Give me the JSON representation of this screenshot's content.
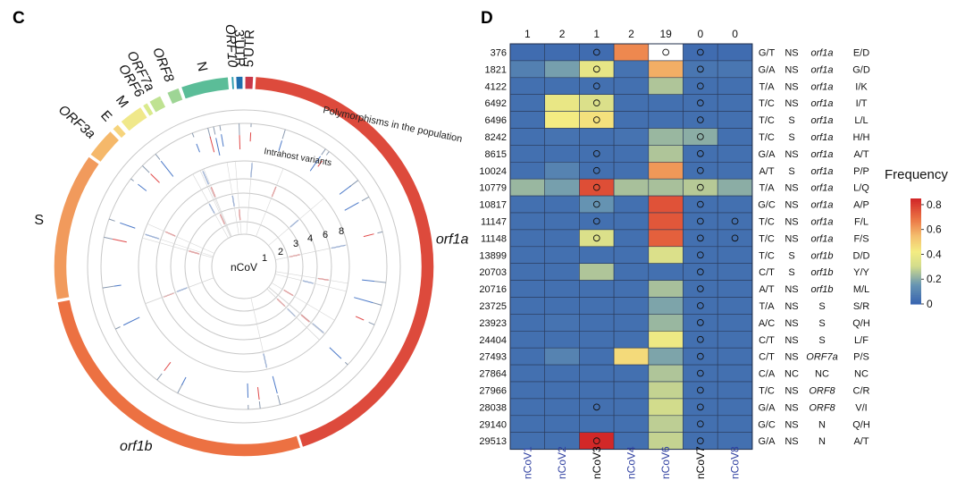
{
  "chart_data": [
    {
      "type": "circos",
      "panel": "C",
      "center_label": "nCoV",
      "track_labels": [
        "Polymorphisms in the population",
        "Intrahost variants"
      ],
      "ring_labels": [
        "1",
        "2",
        "3",
        "4",
        "6",
        "8"
      ],
      "genome_segments": [
        {
          "name": "5'UTR",
          "start": 1,
          "end": 265,
          "color": "#c93848",
          "italic": false
        },
        {
          "name": "orf1a",
          "start": 266,
          "end": 13483,
          "color": "#dd4a3c",
          "italic": true
        },
        {
          "name": "orf1b",
          "start": 13484,
          "end": 21555,
          "color": "#ec7142",
          "italic": true
        },
        {
          "name": "S",
          "start": 21563,
          "end": 25384,
          "color": "#f19a5c",
          "italic": false
        },
        {
          "name": "ORF3a",
          "start": 25393,
          "end": 26220,
          "color": "#f5b86a",
          "italic": true
        },
        {
          "name": "E",
          "start": 26245,
          "end": 26472,
          "color": "#f6d47c",
          "italic": false
        },
        {
          "name": "M",
          "start": 26523,
          "end": 27191,
          "color": "#f0e88a",
          "italic": false
        },
        {
          "name": "ORF6",
          "start": 27202,
          "end": 27387,
          "color": "#d9ea8c",
          "italic": true
        },
        {
          "name": "ORF7a",
          "start": 27394,
          "end": 27759,
          "color": "#bfe292",
          "italic": true
        },
        {
          "name": "ORF8",
          "start": 27894,
          "end": 28259,
          "color": "#9ed595",
          "italic": true
        },
        {
          "name": "N",
          "start": 28274,
          "end": 29533,
          "color": "#5bbd98",
          "italic": false
        },
        {
          "name": "ORF10",
          "start": 29558,
          "end": 29674,
          "color": "#2f9fb0",
          "italic": true
        },
        {
          "name": "3'UTR",
          "start": 29675,
          "end": 29903,
          "color": "#1f6fae",
          "italic": false
        }
      ],
      "population_polymorphisms": [
        241,
        1397,
        2891,
        3037,
        4402,
        5062,
        6312,
        8017,
        8782,
        9477,
        11083,
        13730,
        14408,
        14805,
        17247,
        18060,
        20268,
        21707,
        23403,
        24034,
        25563,
        26144,
        26729,
        28144,
        28688,
        28881,
        29095,
        29742
      ],
      "intrahost_variants": [
        376,
        1821,
        4122,
        6492,
        6496,
        8242,
        8615,
        10024,
        10779,
        10817,
        11147,
        11148,
        13899,
        20703,
        20716,
        23725,
        23923,
        24404,
        27493,
        27864,
        27966,
        28038,
        29140,
        29513
      ],
      "colors": {
        "population_lines": "#8a9ab0",
        "intrahost_red": "#e04848",
        "intrahost_blue": "#4a78c8",
        "ring": "#c8c8c8"
      }
    },
    {
      "type": "heatmap",
      "panel": "D",
      "title": "",
      "legend_title": "Frequency",
      "colorbar_ticks": [
        "0.8",
        "0.6",
        "0.4",
        "0.2",
        "0"
      ],
      "colorbar_range": [
        0,
        0.85
      ],
      "samples": [
        "nCoV1",
        "nCoV2",
        "nCoV3",
        "nCoV4",
        "nCoV6",
        "nCoV7",
        "nCoV8"
      ],
      "sample_label_colors": [
        "#2e3fa0",
        "#2e3fa0",
        "#000000",
        "#2e3fa0",
        "#2e3fa0",
        "#000000",
        "#2e3fa0"
      ],
      "column_counts": [
        "1",
        "2",
        "1",
        "2",
        "19",
        "0",
        "0"
      ],
      "rows": [
        {
          "position": "376",
          "change": "G/T",
          "effect": "NS",
          "gene": "orf1a",
          "gene_italic": true,
          "aa": "E/D",
          "values": [
            0.02,
            0.02,
            0.02,
            0.65,
            null,
            0.02,
            0.02
          ],
          "markers": [
            2,
            4,
            5
          ]
        },
        {
          "position": "1821",
          "change": "G/A",
          "effect": "NS",
          "gene": "orf1a",
          "gene_italic": true,
          "aa": "G/D",
          "values": [
            0.08,
            0.17,
            0.37,
            0.04,
            0.58,
            0.05,
            0.05
          ],
          "markers": [
            2,
            5
          ]
        },
        {
          "position": "4122",
          "change": "T/A",
          "effect": "NS",
          "gene": "orf1a",
          "gene_italic": true,
          "aa": "I/K",
          "values": [
            0.03,
            0.03,
            0.03,
            0.03,
            0.25,
            0.03,
            0.03
          ],
          "markers": [
            2,
            5
          ]
        },
        {
          "position": "6492",
          "change": "T/C",
          "effect": "NS",
          "gene": "orf1a",
          "gene_italic": true,
          "aa": "I/T",
          "values": [
            0.03,
            0.38,
            0.33,
            0.03,
            0.03,
            0.03,
            0.03
          ],
          "markers": [
            2,
            5
          ]
        },
        {
          "position": "6496",
          "change": "T/C",
          "effect": "S",
          "gene": "orf1a",
          "gene_italic": true,
          "aa": "L/L",
          "values": [
            0.03,
            0.42,
            0.45,
            0.03,
            0.03,
            0.03,
            0.03
          ],
          "markers": [
            2,
            5
          ]
        },
        {
          "position": "8242",
          "change": "T/C",
          "effect": "S",
          "gene": "orf1a",
          "gene_italic": true,
          "aa": "H/H",
          "values": [
            0.03,
            0.04,
            0.03,
            0.04,
            0.22,
            0.2,
            0.03
          ],
          "markers": [
            5
          ]
        },
        {
          "position": "8615",
          "change": "G/A",
          "effect": "NS",
          "gene": "orf1a",
          "gene_italic": true,
          "aa": "A/T",
          "values": [
            0.03,
            0.03,
            0.03,
            0.03,
            0.25,
            0.03,
            0.03
          ],
          "markers": [
            2,
            5
          ]
        },
        {
          "position": "10024",
          "change": "A/T",
          "effect": "S",
          "gene": "orf1a",
          "gene_italic": true,
          "aa": "P/P",
          "values": [
            0.03,
            0.09,
            0.03,
            0.03,
            0.62,
            0.03,
            0.03
          ],
          "markers": [
            2,
            5
          ]
        },
        {
          "position": "10779",
          "change": "T/A",
          "effect": "NS",
          "gene": "orf1a",
          "gene_italic": true,
          "aa": "L/Q",
          "values": [
            0.22,
            0.17,
            0.77,
            0.24,
            0.24,
            0.26,
            0.2
          ],
          "markers": [
            2,
            5
          ]
        },
        {
          "position": "10817",
          "change": "G/C",
          "effect": "NS",
          "gene": "orf1a",
          "gene_italic": true,
          "aa": "A/P",
          "values": [
            0.03,
            0.03,
            0.14,
            0.03,
            0.76,
            0.03,
            0.03
          ],
          "markers": [
            2,
            5
          ]
        },
        {
          "position": "11147",
          "change": "T/C",
          "effect": "NS",
          "gene": "orf1a",
          "gene_italic": true,
          "aa": "F/L",
          "values": [
            0.03,
            0.03,
            0.03,
            0.03,
            0.75,
            0.03,
            0.03
          ],
          "markers": [
            2,
            5,
            6
          ]
        },
        {
          "position": "11148",
          "change": "T/C",
          "effect": "NS",
          "gene": "orf1a",
          "gene_italic": true,
          "aa": "F/S",
          "values": [
            0.03,
            0.03,
            0.33,
            0.03,
            0.73,
            0.03,
            0.03
          ],
          "markers": [
            2,
            5,
            6
          ]
        },
        {
          "position": "13899",
          "change": "T/C",
          "effect": "S",
          "gene": "orf1b",
          "gene_italic": true,
          "aa": "D/D",
          "values": [
            0.03,
            0.03,
            0.03,
            0.03,
            0.33,
            0.03,
            0.03
          ],
          "markers": [
            5
          ]
        },
        {
          "position": "20703",
          "change": "C/T",
          "effect": "S",
          "gene": "orf1b",
          "gene_italic": true,
          "aa": "Y/Y",
          "values": [
            0.03,
            0.03,
            0.25,
            0.03,
            0.03,
            0.03,
            0.03
          ],
          "markers": [
            5
          ]
        },
        {
          "position": "20716",
          "change": "A/T",
          "effect": "NS",
          "gene": "orf1b",
          "gene_italic": true,
          "aa": "M/L",
          "values": [
            0.03,
            0.03,
            0.03,
            0.03,
            0.24,
            0.03,
            0.03
          ],
          "markers": [
            5
          ]
        },
        {
          "position": "23725",
          "change": "T/A",
          "effect": "NS",
          "gene": "S",
          "gene_italic": false,
          "aa": "S/R",
          "values": [
            0.03,
            0.03,
            0.03,
            0.03,
            0.18,
            0.03,
            0.03
          ],
          "markers": [
            5
          ]
        },
        {
          "position": "23923",
          "change": "A/C",
          "effect": "NS",
          "gene": "S",
          "gene_italic": false,
          "aa": "Q/H",
          "values": [
            0.03,
            0.04,
            0.03,
            0.03,
            0.22,
            0.03,
            0.03
          ],
          "markers": [
            5
          ]
        },
        {
          "position": "24404",
          "change": "C/T",
          "effect": "NS",
          "gene": "S",
          "gene_italic": false,
          "aa": "L/F",
          "values": [
            0.03,
            0.03,
            0.03,
            0.03,
            0.4,
            0.03,
            0.03
          ],
          "markers": [
            5
          ]
        },
        {
          "position": "27493",
          "change": "C/T",
          "effect": "NS",
          "gene": "ORF7a",
          "gene_italic": true,
          "aa": "P/S",
          "values": [
            0.03,
            0.09,
            0.03,
            0.47,
            0.18,
            0.03,
            0.03
          ],
          "markers": [
            5
          ]
        },
        {
          "position": "27864",
          "change": "C/A",
          "effect": "NC",
          "gene": "NC",
          "gene_italic": false,
          "aa": "NC",
          "values": [
            0.03,
            0.03,
            0.03,
            0.03,
            0.25,
            0.03,
            0.03
          ],
          "markers": [
            5
          ]
        },
        {
          "position": "27966",
          "change": "T/C",
          "effect": "NS",
          "gene": "ORF8",
          "gene_italic": true,
          "aa": "C/R",
          "values": [
            0.03,
            0.03,
            0.03,
            0.03,
            0.28,
            0.03,
            0.03
          ],
          "markers": [
            5
          ]
        },
        {
          "position": "28038",
          "change": "G/A",
          "effect": "NS",
          "gene": "ORF8",
          "gene_italic": true,
          "aa": "V/I",
          "values": [
            0.03,
            0.03,
            0.03,
            0.03,
            0.3,
            0.03,
            0.03
          ],
          "markers": [
            2,
            5
          ]
        },
        {
          "position": "29140",
          "change": "G/C",
          "effect": "NS",
          "gene": "N",
          "gene_italic": false,
          "aa": "Q/H",
          "values": [
            0.03,
            0.03,
            0.03,
            0.03,
            0.27,
            0.03,
            0.03
          ],
          "markers": [
            5
          ]
        },
        {
          "position": "29513",
          "change": "G/A",
          "effect": "NS",
          "gene": "N",
          "gene_italic": false,
          "aa": "A/T",
          "values": [
            0.03,
            0.03,
            0.85,
            0.03,
            0.28,
            0.03,
            0.03
          ],
          "markers": [
            2,
            5
          ]
        }
      ]
    }
  ]
}
